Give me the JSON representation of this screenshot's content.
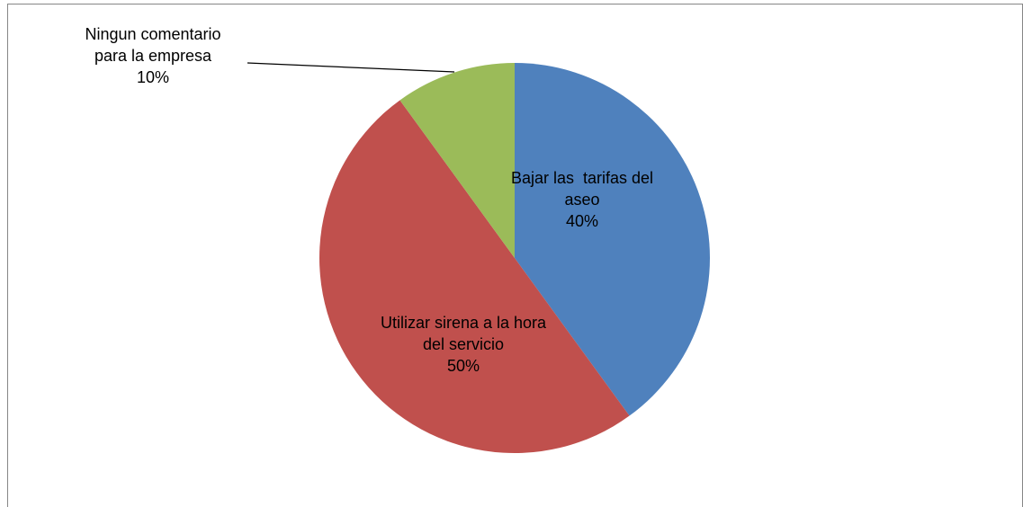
{
  "chart_data": {
    "type": "pie",
    "categories": [
      "Bajar las  tarifas del aseo",
      "Utilizar sirena a la hora del servicio",
      "Ningun comentario para la empresa"
    ],
    "values": [
      40,
      50,
      10
    ],
    "value_labels": [
      "40%",
      "50%",
      "10%"
    ],
    "colors": [
      "#4f81bd",
      "#c0504d",
      "#9bbb59"
    ]
  }
}
